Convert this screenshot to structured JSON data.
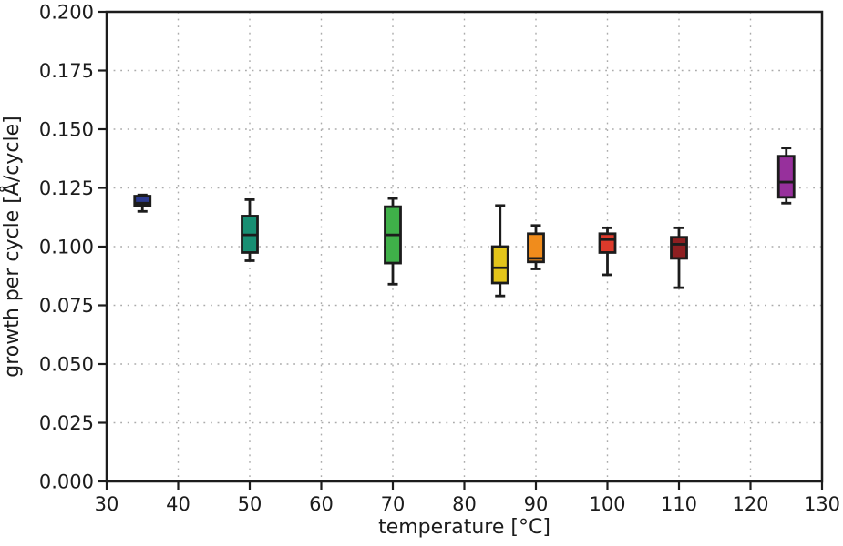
{
  "figure": {
    "background": "#ffffff",
    "frame_color": "#1c1c1c",
    "grid_color": "#ababab"
  },
  "chart_data": {
    "type": "boxplot",
    "title": "",
    "xlabel": "temperature [°C]",
    "ylabel": "growth per cycle [Å/cycle]",
    "xlim": [
      30,
      130
    ],
    "ylim": [
      0.0,
      0.2
    ],
    "xticks": [
      30,
      40,
      50,
      60,
      70,
      80,
      90,
      100,
      110,
      120,
      130
    ],
    "yticks": [
      0.0,
      0.025,
      0.05,
      0.075,
      0.1,
      0.125,
      0.15,
      0.175,
      0.2
    ],
    "ytick_decimals": 3,
    "grid": "dotted, both axes",
    "legend": "none",
    "boxes": [
      {
        "temperature": 35,
        "whislo": 0.115,
        "q1": 0.1175,
        "med": 0.1185,
        "q3": 0.1215,
        "whishi": 0.122,
        "color": "#2b3a8f"
      },
      {
        "temperature": 50,
        "whislo": 0.094,
        "q1": 0.0975,
        "med": 0.105,
        "q3": 0.113,
        "whishi": 0.12,
        "color": "#188f73"
      },
      {
        "temperature": 70,
        "whislo": 0.084,
        "q1": 0.093,
        "med": 0.105,
        "q3": 0.117,
        "whishi": 0.1205,
        "color": "#3fb049"
      },
      {
        "temperature": 85,
        "whislo": 0.079,
        "q1": 0.0845,
        "med": 0.091,
        "q3": 0.1,
        "whishi": 0.1175,
        "color": "#e3c51a"
      },
      {
        "temperature": 90,
        "whislo": 0.0905,
        "q1": 0.0935,
        "med": 0.095,
        "q3": 0.1055,
        "whishi": 0.109,
        "color": "#f08c1c"
      },
      {
        "temperature": 100,
        "whislo": 0.088,
        "q1": 0.0975,
        "med": 0.103,
        "q3": 0.1055,
        "whishi": 0.108,
        "color": "#dd3a2b"
      },
      {
        "temperature": 110,
        "whislo": 0.0825,
        "q1": 0.095,
        "med": 0.101,
        "q3": 0.104,
        "whishi": 0.108,
        "color": "#8e1f21"
      },
      {
        "temperature": 125,
        "whislo": 0.1185,
        "q1": 0.121,
        "med": 0.1275,
        "q3": 0.1385,
        "whishi": 0.142,
        "color": "#97309c"
      }
    ]
  }
}
